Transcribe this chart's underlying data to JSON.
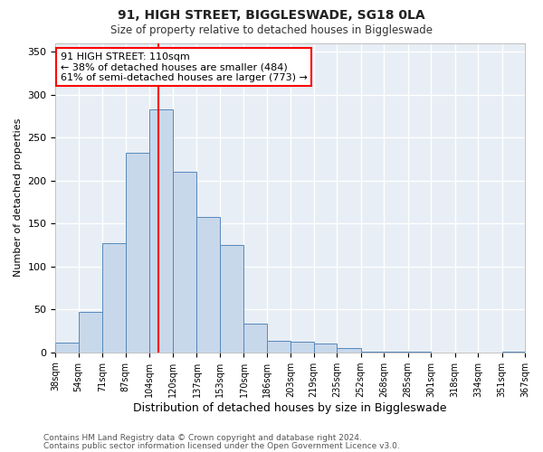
{
  "title": "91, HIGH STREET, BIGGLESWADE, SG18 0LA",
  "subtitle": "Size of property relative to detached houses in Biggleswade",
  "xlabel": "Distribution of detached houses by size in Biggleswade",
  "ylabel": "Number of detached properties",
  "bins": [
    38,
    54,
    71,
    87,
    104,
    120,
    137,
    153,
    170,
    186,
    203,
    219,
    235,
    252,
    268,
    285,
    301,
    318,
    334,
    351,
    367
  ],
  "bin_labels": [
    "38sqm",
    "54sqm",
    "71sqm",
    "87sqm",
    "104sqm",
    "120sqm",
    "137sqm",
    "153sqm",
    "170sqm",
    "186sqm",
    "203sqm",
    "219sqm",
    "235sqm",
    "252sqm",
    "268sqm",
    "285sqm",
    "301sqm",
    "318sqm",
    "334sqm",
    "351sqm",
    "367sqm"
  ],
  "counts": [
    11,
    47,
    127,
    232,
    283,
    210,
    157,
    125,
    33,
    13,
    12,
    10,
    5,
    1,
    1,
    1,
    0,
    0,
    0,
    1
  ],
  "bar_color": "#c8d8eb",
  "bar_edge_color": "#5588bb",
  "property_value": 110,
  "vline_color": "red",
  "annotation_text": "91 HIGH STREET: 110sqm\n← 38% of detached houses are smaller (484)\n61% of semi-detached houses are larger (773) →",
  "annotation_box_color": "white",
  "annotation_box_edge_color": "red",
  "ylim": [
    0,
    360
  ],
  "yticks": [
    0,
    50,
    100,
    150,
    200,
    250,
    300,
    350
  ],
  "footer_line1": "Contains HM Land Registry data © Crown copyright and database right 2024.",
  "footer_line2": "Contains public sector information licensed under the Open Government Licence v3.0.",
  "plot_bg_color": "#e8eef5",
  "fig_bg_color": "#ffffff",
  "grid_color": "#ffffff"
}
